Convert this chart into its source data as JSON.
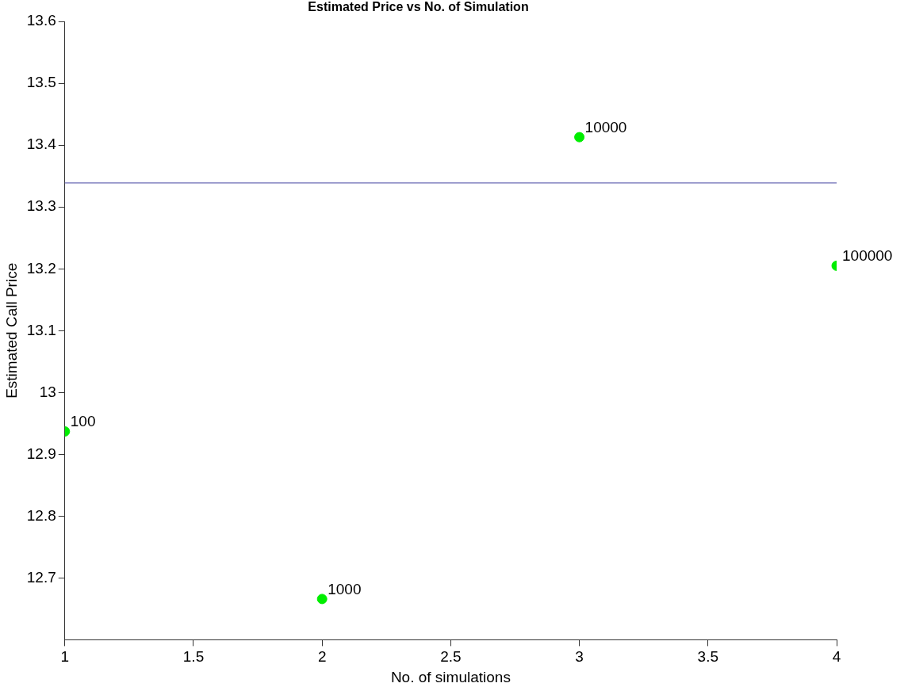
{
  "chart_data": {
    "type": "scatter",
    "title": "Estimated Price vs No. of Simulation",
    "xlabel": "No. of simulations",
    "ylabel": "Estimated Call Price",
    "x": [
      1,
      2,
      3,
      4
    ],
    "series": [
      {
        "color": "#00ee00",
        "values": [
          12.937,
          12.666,
          13.413,
          13.205
        ]
      }
    ],
    "marker": "circle",
    "grid": false,
    "legend": false,
    "xlim": [
      1,
      4
    ],
    "xticks": [
      1,
      1.5,
      2,
      2.5,
      3,
      3.5,
      4
    ],
    "ylim": [
      12.6,
      13.6
    ],
    "yticks": [
      12.7,
      12.8,
      12.9,
      13,
      13.1,
      13.2,
      13.3,
      13.4,
      13.5,
      13.6
    ],
    "ref_lines": [
      {
        "axis": "y",
        "value": 13.339,
        "color": "#6a6ab4"
      }
    ],
    "annotations": [
      {
        "text": "100",
        "x": 1,
        "y": 12.937
      },
      {
        "text": "1000",
        "x": 2,
        "y": 12.666
      },
      {
        "text": "10000",
        "x": 3,
        "y": 13.413
      },
      {
        "text": "100000",
        "x": 4,
        "y": 13.205
      }
    ]
  }
}
